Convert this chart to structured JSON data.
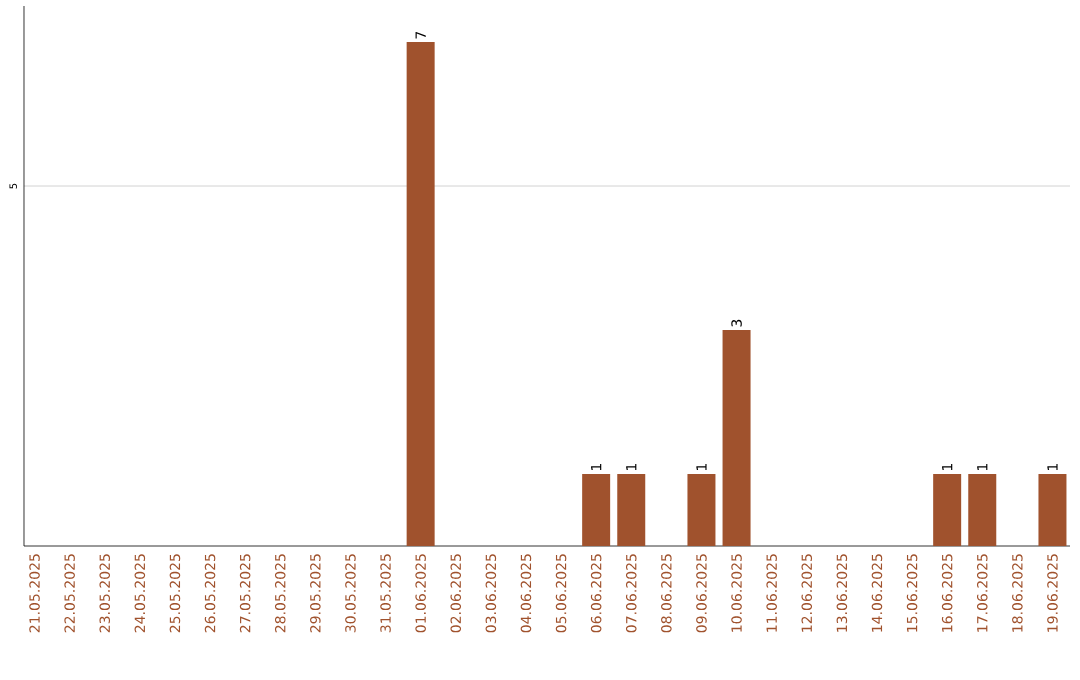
{
  "chart_data": {
    "type": "bar",
    "categories": [
      "21.05.2025",
      "22.05.2025",
      "23.05.2025",
      "24.05.2025",
      "25.05.2025",
      "26.05.2025",
      "27.05.2025",
      "28.05.2025",
      "29.05.2025",
      "30.05.2025",
      "31.05.2025",
      "01.06.2025",
      "02.06.2025",
      "03.06.2025",
      "04.06.2025",
      "05.06.2025",
      "06.06.2025",
      "07.06.2025",
      "08.06.2025",
      "09.06.2025",
      "10.06.2025",
      "11.06.2025",
      "12.06.2025",
      "13.06.2025",
      "14.06.2025",
      "15.06.2025",
      "16.06.2025",
      "17.06.2025",
      "18.06.2025",
      "19.06.2025"
    ],
    "values": [
      0,
      0,
      0,
      0,
      0,
      0,
      0,
      0,
      0,
      0,
      0,
      7,
      0,
      0,
      0,
      0,
      1,
      1,
      0,
      1,
      3,
      0,
      0,
      0,
      0,
      0,
      1,
      1,
      0,
      1
    ],
    "value_labels": [
      null,
      null,
      null,
      null,
      null,
      null,
      null,
      null,
      null,
      null,
      null,
      "7",
      null,
      null,
      null,
      null,
      "1",
      "1",
      null,
      "1",
      "3",
      null,
      null,
      null,
      null,
      null,
      "1",
      "1",
      null,
      "1"
    ],
    "color": "#a0522d",
    "ylim": [
      0,
      7.5
    ],
    "yticks": [
      5
    ],
    "grid": "y"
  }
}
